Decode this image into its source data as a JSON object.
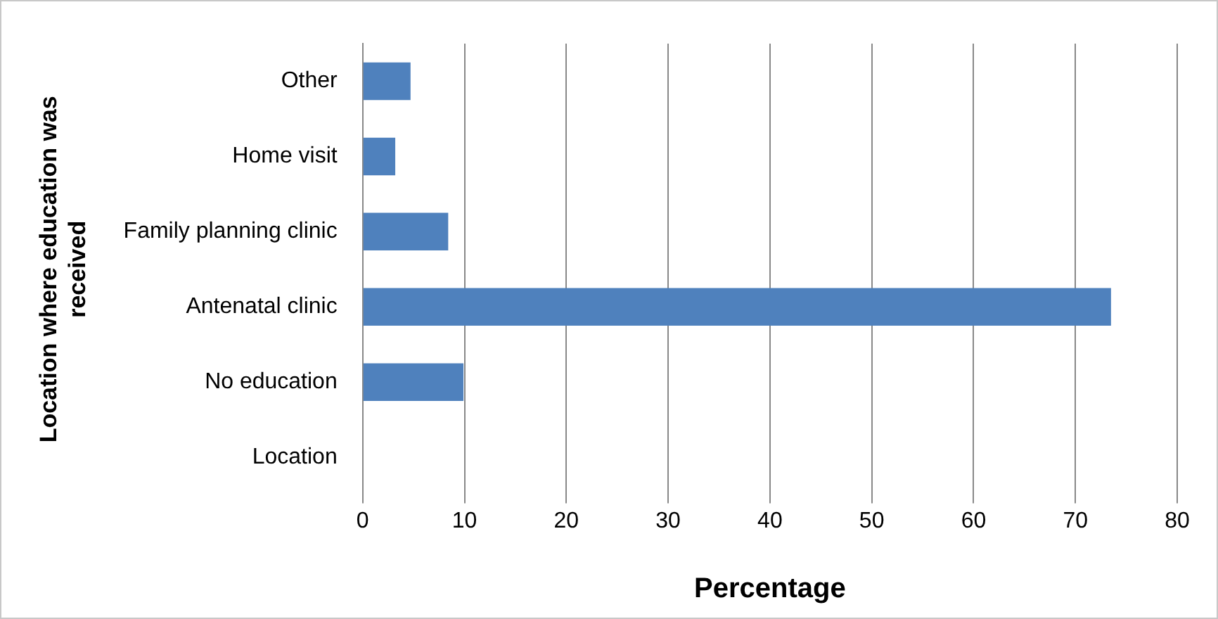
{
  "chart_data": {
    "type": "bar",
    "orientation": "horizontal",
    "categories": [
      "Other",
      "Home visit",
      "Family planning clinic",
      "Antenatal clinic",
      "No education",
      "Location"
    ],
    "values": [
      4.7,
      3.2,
      8.4,
      73.5,
      9.9,
      null
    ],
    "color": "#4f81bd",
    "xlim": [
      0,
      80
    ],
    "xticks": [
      0,
      10,
      20,
      30,
      40,
      50,
      60,
      70,
      80
    ],
    "grid": "x",
    "legend": false,
    "xlabel": "Percentage",
    "ylabel": "Location where education was received"
  }
}
